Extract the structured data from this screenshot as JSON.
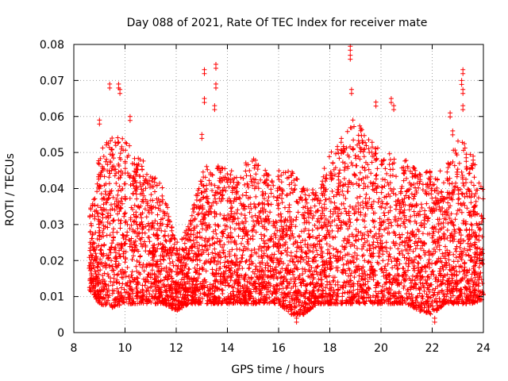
{
  "chart_data": {
    "type": "scatter",
    "title": "Day 088 of 2021, Rate Of TEC Index for receiver mate",
    "xlabel": "GPS time / hours",
    "ylabel": "ROTI / TECUs",
    "xlim": [
      8,
      24
    ],
    "ylim": [
      0,
      0.08
    ],
    "xticks": [
      8,
      10,
      12,
      14,
      16,
      18,
      20,
      22,
      24
    ],
    "yticks": [
      0,
      0.01,
      0.02,
      0.03,
      0.04,
      0.05,
      0.06,
      0.07,
      0.08
    ],
    "ytick_labels": [
      "0",
      "0.01",
      "0.02",
      "0.03",
      "0.04",
      "0.05",
      "0.06",
      "0.07",
      "0.08"
    ],
    "grid": true,
    "marker": "+",
    "color": "#ff0000",
    "series": [
      {
        "name": "ROTI",
        "x_start": 8.6,
        "x_end": 24.0,
        "envelope_x": [
          8.6,
          9.0,
          9.5,
          10.0,
          10.5,
          11.0,
          11.5,
          12.0,
          12.5,
          13.0,
          13.5,
          14.0,
          14.5,
          15.0,
          15.5,
          16.0,
          16.5,
          17.0,
          17.5,
          18.0,
          18.5,
          19.0,
          19.5,
          20.0,
          20.5,
          21.0,
          21.5,
          22.0,
          22.5,
          23.0,
          23.5,
          24.0
        ],
        "envelope_low": [
          0.012,
          0.008,
          0.007,
          0.008,
          0.008,
          0.008,
          0.008,
          0.006,
          0.008,
          0.008,
          0.008,
          0.008,
          0.008,
          0.008,
          0.008,
          0.008,
          0.005,
          0.005,
          0.008,
          0.008,
          0.008,
          0.008,
          0.008,
          0.008,
          0.008,
          0.008,
          0.006,
          0.005,
          0.008,
          0.008,
          0.008,
          0.009
        ],
        "envelope_high": [
          0.032,
          0.05,
          0.055,
          0.055,
          0.05,
          0.045,
          0.04,
          0.025,
          0.03,
          0.045,
          0.048,
          0.045,
          0.045,
          0.05,
          0.045,
          0.045,
          0.045,
          0.04,
          0.04,
          0.05,
          0.055,
          0.06,
          0.055,
          0.05,
          0.05,
          0.048,
          0.045,
          0.045,
          0.045,
          0.055,
          0.05,
          0.04
        ],
        "outliers": [
          {
            "x": 9.4,
            "y": 0.069
          },
          {
            "x": 9.75,
            "y": 0.069
          },
          {
            "x": 9.8,
            "y": 0.0675
          },
          {
            "x": 10.2,
            "y": 0.06
          },
          {
            "x": 9.0,
            "y": 0.059
          },
          {
            "x": 13.1,
            "y": 0.073
          },
          {
            "x": 13.1,
            "y": 0.065
          },
          {
            "x": 13.55,
            "y": 0.0745
          },
          {
            "x": 13.55,
            "y": 0.069
          },
          {
            "x": 13.5,
            "y": 0.063
          },
          {
            "x": 13.0,
            "y": 0.055
          },
          {
            "x": 18.8,
            "y": 0.0795
          },
          {
            "x": 18.8,
            "y": 0.077
          },
          {
            "x": 18.85,
            "y": 0.0675
          },
          {
            "x": 19.8,
            "y": 0.064
          },
          {
            "x": 20.4,
            "y": 0.065
          },
          {
            "x": 20.5,
            "y": 0.063
          },
          {
            "x": 23.2,
            "y": 0.073
          },
          {
            "x": 23.15,
            "y": 0.07
          },
          {
            "x": 23.2,
            "y": 0.0675
          },
          {
            "x": 23.2,
            "y": 0.063
          },
          {
            "x": 22.7,
            "y": 0.061
          },
          {
            "x": 22.8,
            "y": 0.056
          },
          {
            "x": 23.6,
            "y": 0.049
          },
          {
            "x": 22.1,
            "y": 0.004
          },
          {
            "x": 16.7,
            "y": 0.004
          }
        ]
      }
    ]
  }
}
